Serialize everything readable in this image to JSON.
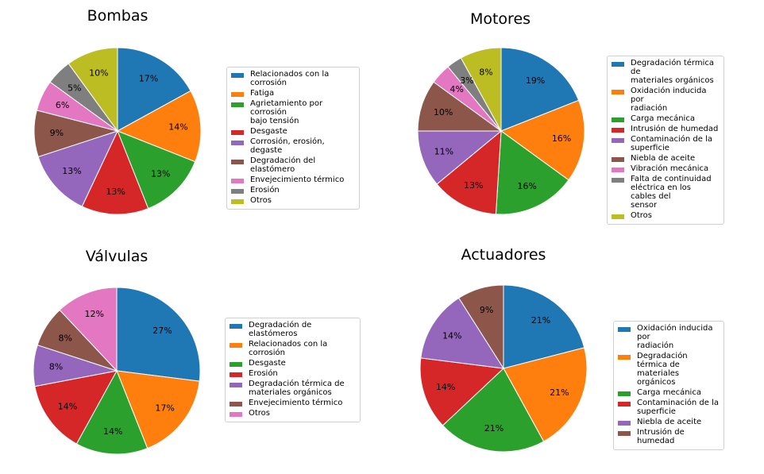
{
  "palette": [
    "#1f77b4",
    "#ff7f0e",
    "#2ca02c",
    "#d62728",
    "#9467bd",
    "#8c564b",
    "#e377c2",
    "#7f7f7f",
    "#bcbd22"
  ],
  "chart_data": [
    {
      "type": "pie",
      "title": "Bombas",
      "categories": [
        "Relacionados con la\ncorrosión",
        "Fatiga",
        "Agrietamiento por corrosión\nbajo tensión",
        "Desgaste",
        "Corrosión, erosión, degaste",
        "Degradación del elastómero",
        "Envejecimiento térmico",
        "Erosión",
        "Otros"
      ],
      "values": [
        17,
        14,
        13,
        13,
        13,
        9,
        6,
        5,
        10
      ],
      "labels": [
        "17%",
        "14%",
        "13%",
        "13%",
        "13%",
        "9%",
        "6%",
        "5%",
        "10%"
      ],
      "legend": "right"
    },
    {
      "type": "pie",
      "title": "Motores",
      "categories": [
        "Degradación térmica de\nmateriales orgánicos",
        "Oxidación inducida por\nradiación",
        "Carga mecánica",
        "Intrusión de humedad",
        "Contaminación de la\nsuperficie",
        "Niebla de aceite",
        "Vibración mecánica",
        "Falta de continuidad\neléctrica en los cables del\nsensor",
        "Otros"
      ],
      "values": [
        19,
        16,
        16,
        13,
        11,
        10,
        4,
        3,
        8
      ],
      "labels": [
        "19%",
        "16%",
        "16%",
        "13%",
        "11%",
        "10%",
        "4%",
        "3%",
        "8%"
      ],
      "legend": "right"
    },
    {
      "type": "pie",
      "title": "Válvulas",
      "categories": [
        "Degradación de elastómeros",
        "Relacionados con la\ncorrosión",
        "Desgaste",
        "Erosión",
        "Degradación térmica de\nmateriales orgánicos",
        "Envejecimiento térmico",
        "Otros"
      ],
      "values": [
        27,
        17,
        14,
        14,
        8,
        8,
        12
      ],
      "labels": [
        "27%",
        "17%",
        "14%",
        "14%",
        "8%",
        "8%",
        "12%"
      ],
      "legend": "right"
    },
    {
      "type": "pie",
      "title": "Actuadores",
      "categories": [
        "Oxidación inducida por\nradiación",
        "Degradación térmica de\nmateriales orgánicos",
        "Carga mecánica",
        "Contaminación de la\nsuperficie",
        "Niebla de aceite",
        "Intrusión de humedad"
      ],
      "values": [
        21,
        21,
        21,
        14,
        14,
        9
      ],
      "labels": [
        "21%",
        "21%",
        "21%",
        "14%",
        "14%",
        "9%"
      ],
      "legend": "right"
    }
  ]
}
